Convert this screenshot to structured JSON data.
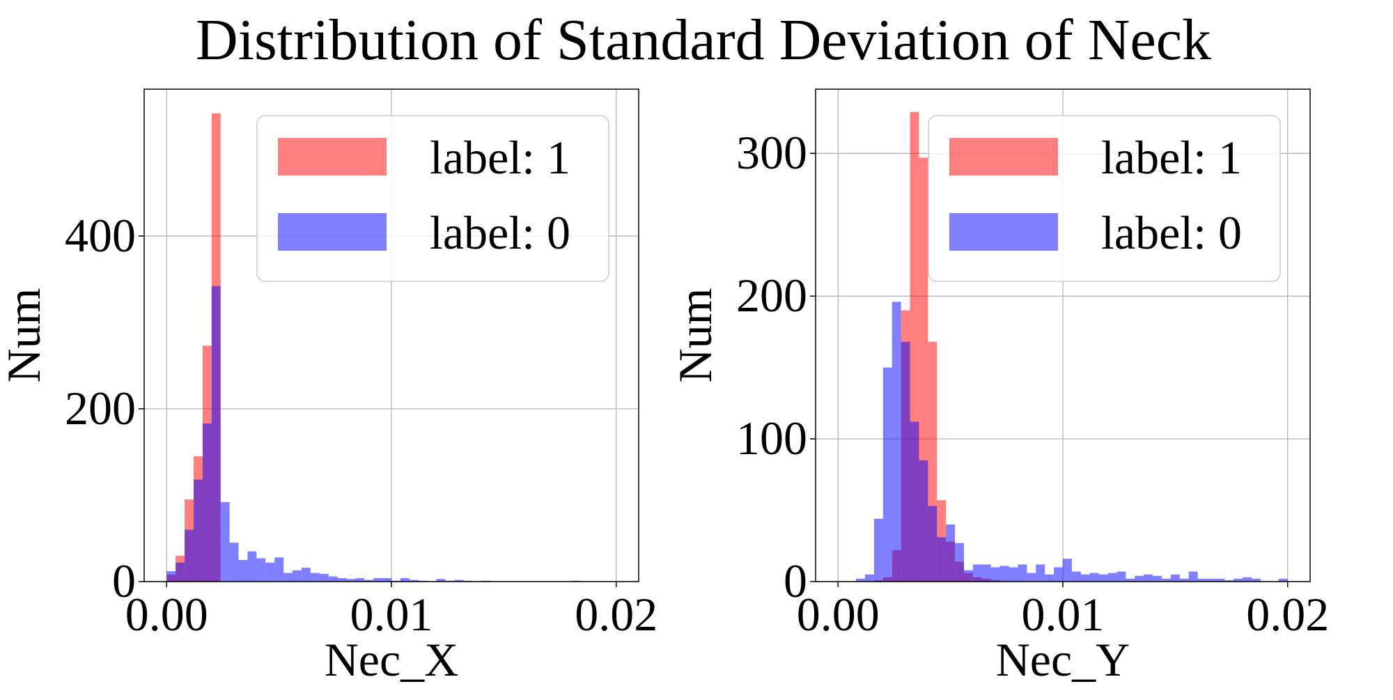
{
  "title": "Distribution of Standard Deviation of Neck",
  "colors": {
    "label_1": "#ff0000",
    "label_0": "#0000ff",
    "bar_opacity": 0.5,
    "grid": "#b0b0b0"
  },
  "chart_data": [
    {
      "type": "bar",
      "subtype": "histogram-overlay",
      "xlabel": "Nec_X",
      "ylabel": "Num",
      "xlim": [
        -0.001,
        0.021
      ],
      "ylim": [
        0,
        570
      ],
      "xticks": [
        0.0,
        0.01,
        0.02
      ],
      "xtick_labels": [
        "0.00",
        "0.01",
        "0.02"
      ],
      "yticks": [
        0,
        200,
        400
      ],
      "ytick_labels": [
        "0",
        "200",
        "400"
      ],
      "grid": true,
      "legend_position": "top-right",
      "series": [
        {
          "name": "label: 1",
          "color": "#ff0000",
          "bins": [
            [
              0.0,
              0.0004,
              8
            ],
            [
              0.0004,
              0.0008,
              30
            ],
            [
              0.0008,
              0.0012,
              95
            ],
            [
              0.0012,
              0.0016,
              145
            ],
            [
              0.0016,
              0.002,
              273
            ],
            [
              0.002,
              0.0024,
              542
            ],
            [
              0.0024,
              0.0028,
              0
            ]
          ]
        },
        {
          "name": "label: 0",
          "color": "#0000ff",
          "bins": [
            [
              0.0,
              0.0004,
              12
            ],
            [
              0.0004,
              0.0008,
              22
            ],
            [
              0.0008,
              0.0012,
              60
            ],
            [
              0.0012,
              0.0016,
              118
            ],
            [
              0.0016,
              0.002,
              183
            ],
            [
              0.002,
              0.0024,
              342
            ],
            [
              0.0024,
              0.0028,
              92
            ],
            [
              0.0028,
              0.0032,
              45
            ],
            [
              0.0032,
              0.0036,
              25
            ],
            [
              0.0036,
              0.004,
              35
            ],
            [
              0.004,
              0.0044,
              27
            ],
            [
              0.0044,
              0.0048,
              22
            ],
            [
              0.0048,
              0.0052,
              28
            ],
            [
              0.0052,
              0.0056,
              10
            ],
            [
              0.0056,
              0.006,
              13
            ],
            [
              0.006,
              0.0064,
              16
            ],
            [
              0.0064,
              0.0068,
              10
            ],
            [
              0.0068,
              0.0072,
              9
            ],
            [
              0.0072,
              0.0076,
              6
            ],
            [
              0.0076,
              0.008,
              4
            ],
            [
              0.008,
              0.0084,
              3
            ],
            [
              0.0084,
              0.0088,
              4
            ],
            [
              0.0088,
              0.0092,
              2
            ],
            [
              0.0092,
              0.0096,
              4
            ],
            [
              0.0096,
              0.01,
              4
            ],
            [
              0.01,
              0.0104,
              1
            ],
            [
              0.0104,
              0.0108,
              4
            ],
            [
              0.0108,
              0.0112,
              2
            ],
            [
              0.0112,
              0.0116,
              1
            ],
            [
              0.0116,
              0.012,
              0
            ],
            [
              0.012,
              0.0124,
              3
            ],
            [
              0.0124,
              0.0128,
              1
            ],
            [
              0.0128,
              0.0132,
              2
            ],
            [
              0.0132,
              0.0136,
              1
            ],
            [
              0.014,
              0.0144,
              1
            ],
            [
              0.018,
              0.0184,
              1
            ]
          ]
        }
      ]
    },
    {
      "type": "bar",
      "subtype": "histogram-overlay",
      "xlabel": "Nec_Y",
      "ylabel": "Num",
      "xlim": [
        -0.001,
        0.021
      ],
      "ylim": [
        0,
        345
      ],
      "xticks": [
        0.0,
        0.01,
        0.02
      ],
      "xtick_labels": [
        "0.00",
        "0.01",
        "0.02"
      ],
      "yticks": [
        0,
        100,
        200,
        300
      ],
      "ytick_labels": [
        "0",
        "100",
        "200",
        "300"
      ],
      "grid": true,
      "legend_position": "top-right",
      "series": [
        {
          "name": "label: 1",
          "color": "#ff0000",
          "bins": [
            [
              0.0016,
              0.002,
              1
            ],
            [
              0.002,
              0.0024,
              3
            ],
            [
              0.0024,
              0.0028,
              22
            ],
            [
              0.0028,
              0.0032,
              190
            ],
            [
              0.0032,
              0.0036,
              329
            ],
            [
              0.0036,
              0.004,
              297
            ],
            [
              0.004,
              0.0044,
              168
            ],
            [
              0.0044,
              0.0048,
              57
            ],
            [
              0.0048,
              0.0052,
              28
            ],
            [
              0.0052,
              0.0056,
              14
            ],
            [
              0.0056,
              0.006,
              6
            ],
            [
              0.006,
              0.0064,
              3
            ],
            [
              0.0064,
              0.0068,
              2
            ],
            [
              0.0068,
              0.0072,
              1
            ]
          ]
        },
        {
          "name": "label: 0",
          "color": "#0000ff",
          "bins": [
            [
              0.0008,
              0.0012,
              2
            ],
            [
              0.0012,
              0.0016,
              5
            ],
            [
              0.0016,
              0.002,
              44
            ],
            [
              0.002,
              0.0024,
              150
            ],
            [
              0.0024,
              0.0028,
              196
            ],
            [
              0.0028,
              0.0032,
              168
            ],
            [
              0.0032,
              0.0036,
              112
            ],
            [
              0.0036,
              0.004,
              85
            ],
            [
              0.004,
              0.0044,
              53
            ],
            [
              0.0044,
              0.0048,
              31
            ],
            [
              0.0048,
              0.0052,
              40
            ],
            [
              0.0052,
              0.0056,
              27
            ],
            [
              0.0056,
              0.006,
              8
            ],
            [
              0.006,
              0.0064,
              12
            ],
            [
              0.0064,
              0.0068,
              12
            ],
            [
              0.0068,
              0.0072,
              10
            ],
            [
              0.0072,
              0.0076,
              11
            ],
            [
              0.0076,
              0.008,
              10
            ],
            [
              0.008,
              0.0084,
              12
            ],
            [
              0.0084,
              0.0088,
              6
            ],
            [
              0.0088,
              0.0092,
              12
            ],
            [
              0.0092,
              0.0096,
              5
            ],
            [
              0.0096,
              0.01,
              10
            ],
            [
              0.01,
              0.0104,
              16
            ],
            [
              0.0104,
              0.0108,
              7
            ],
            [
              0.0108,
              0.0112,
              5
            ],
            [
              0.0112,
              0.0116,
              6
            ],
            [
              0.0116,
              0.012,
              5
            ],
            [
              0.012,
              0.0124,
              6
            ],
            [
              0.0124,
              0.0128,
              7
            ],
            [
              0.0128,
              0.0132,
              2
            ],
            [
              0.0132,
              0.0136,
              4
            ],
            [
              0.0136,
              0.014,
              5
            ],
            [
              0.014,
              0.0144,
              4
            ],
            [
              0.0144,
              0.0148,
              2
            ],
            [
              0.0148,
              0.0152,
              5
            ],
            [
              0.0152,
              0.0156,
              2
            ],
            [
              0.0156,
              0.016,
              7
            ],
            [
              0.016,
              0.0164,
              2
            ],
            [
              0.0164,
              0.0168,
              2
            ],
            [
              0.0168,
              0.0172,
              2
            ],
            [
              0.0172,
              0.0176,
              1
            ],
            [
              0.0176,
              0.018,
              2
            ],
            [
              0.018,
              0.0184,
              3
            ],
            [
              0.0184,
              0.0188,
              2
            ],
            [
              0.0196,
              0.02,
              2
            ]
          ]
        }
      ]
    }
  ]
}
